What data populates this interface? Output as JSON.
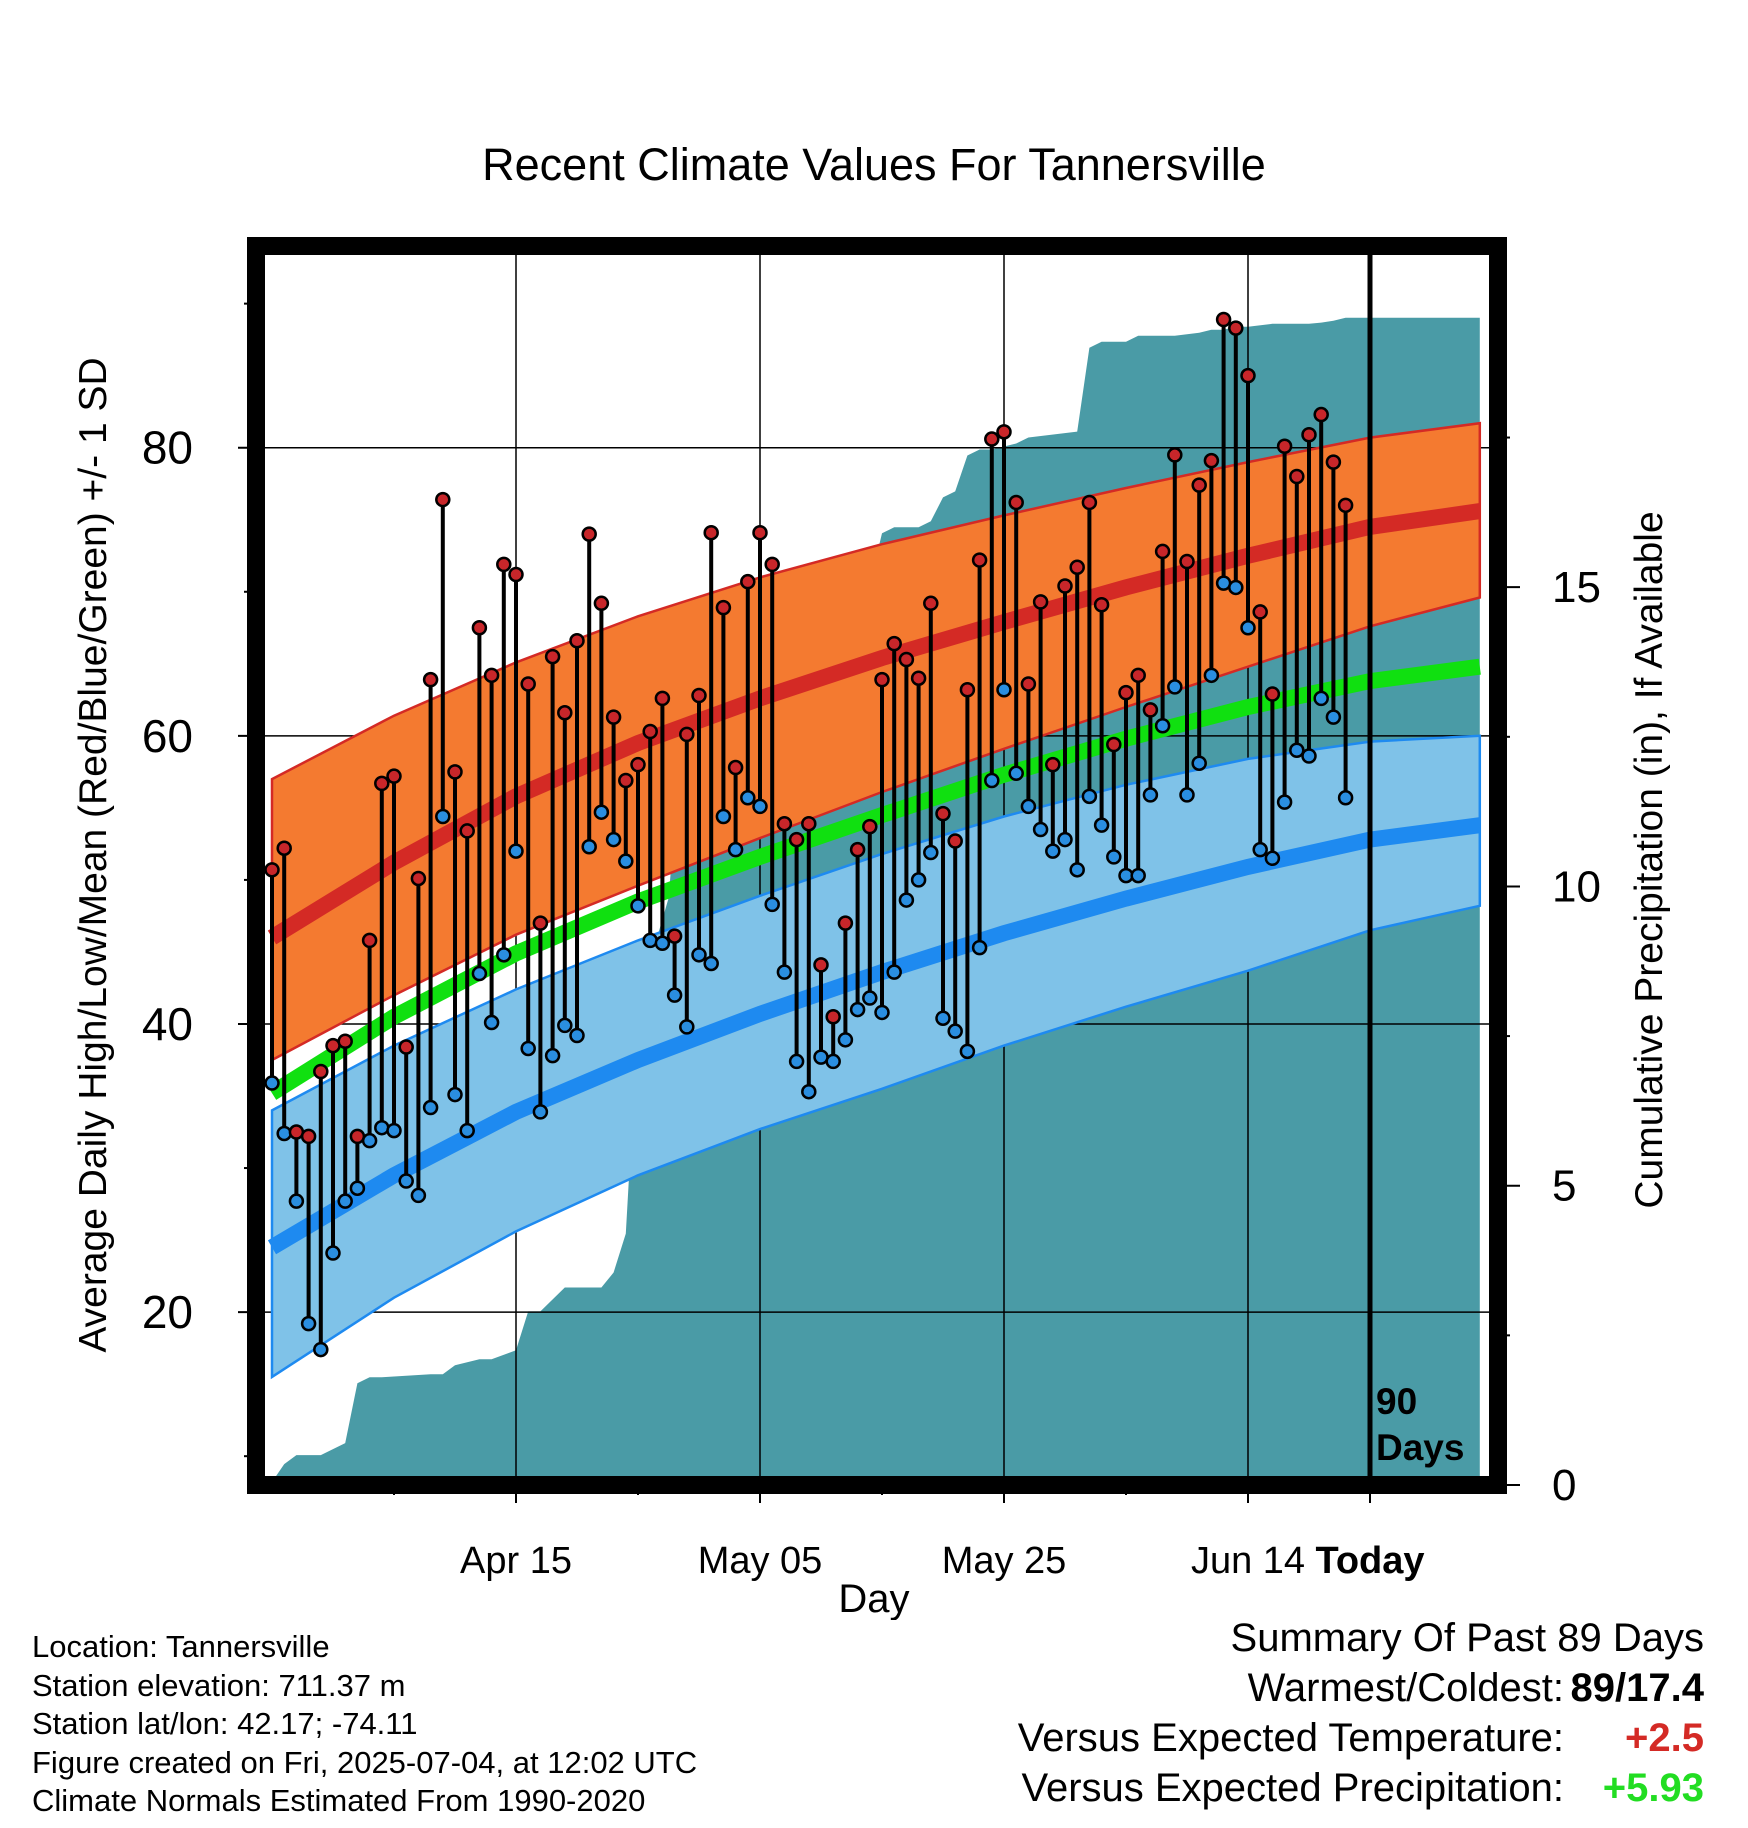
{
  "chart_data": {
    "type": "line",
    "title": "Recent Climate Values For Tannersville",
    "xlabel": "Day",
    "ylabel": "Average Daily High/Low/Mean (Red/Blue/Green) +/- 1 SD",
    "y2label": "Cumulative Precipitation (in), If Available",
    "x_tick_labels": [
      "Apr 15",
      "May 05",
      "May 25",
      "Jun 14",
      "Today"
    ],
    "y_ticks": [
      "20",
      "40",
      "60",
      "80"
    ],
    "y2_ticks": [
      "0",
      "5",
      "10",
      "15"
    ],
    "ylim": [
      8,
      94
    ],
    "y2lim": [
      0,
      20.7
    ],
    "xlim_days_before_today": [
      -90,
      9
    ],
    "grid": true,
    "today_marker_label": [
      "90",
      "Days"
    ],
    "colors": {
      "high_band": "#f47a30",
      "high_mean": "#d42a25",
      "low_band": "#7fc2e8",
      "low_mean": "#1e8af0",
      "mean": "#10e010",
      "precip": "#4a9ba6",
      "high_marker": "#c8262a",
      "low_marker": "#2a8ee0"
    },
    "normals": {
      "day_offsets": [
        -90,
        -80,
        -70,
        -60,
        -50,
        -40,
        -30,
        -20,
        -10,
        0,
        9
      ],
      "high_mean": [
        46,
        51.2,
        55.8,
        59.5,
        62.6,
        65.4,
        67.9,
        70.3,
        72.5,
        74.5,
        75.6
      ],
      "high_upper": [
        57,
        61.4,
        65.1,
        68.3,
        71.0,
        73.3,
        75.3,
        77.2,
        79.0,
        80.7,
        81.7
      ],
      "high_lower": [
        37.5,
        42,
        46.2,
        49.6,
        52.9,
        56.1,
        59.1,
        62.0,
        64.8,
        67.6,
        69.6
      ],
      "low_mean": [
        24.5,
        29.5,
        33.9,
        37.5,
        40.7,
        43.6,
        46.3,
        48.7,
        50.9,
        52.8,
        53.8
      ],
      "low_upper": [
        34,
        38.5,
        42.4,
        45.8,
        48.9,
        51.8,
        54.4,
        56.6,
        58.4,
        59.6,
        60.0
      ],
      "low_lower": [
        15.5,
        21,
        25.6,
        29.5,
        32.7,
        35.5,
        38.5,
        41.2,
        43.7,
        46.5,
        48.2
      ],
      "mean": [
        35.2,
        40.5,
        44.9,
        48.5,
        51.6,
        54.5,
        57.3,
        59.8,
        62.0,
        63.8,
        64.8
      ]
    },
    "daily_high": [
      50.7,
      52.2,
      32.5,
      32.2,
      36.7,
      38.5,
      38.8,
      32.2,
      45.8,
      56.7,
      57.2,
      38.4,
      50.1,
      63.9,
      76.4,
      57.5,
      53.4,
      67.5,
      64.2,
      71.9,
      71.2,
      63.6,
      47,
      65.5,
      61.6,
      66.6,
      74.0,
      69.2,
      61.3,
      56.9,
      58.0,
      60.3,
      62.6,
      46.1,
      60.1,
      62.8,
      74.1,
      68.9,
      57.8,
      70.7,
      74.1,
      71.9,
      53.9,
      52.8,
      53.9,
      44.1,
      40.5,
      47.0,
      52.1,
      53.7,
      63.9,
      66.4,
      65.3,
      64.0,
      69.2,
      54.6,
      52.7,
      63.2,
      72.2,
      80.6,
      81.1,
      76.2,
      63.6,
      69.3,
      58.0,
      70.4,
      71.7,
      76.2,
      69.1,
      59.4,
      63.0,
      64.2,
      61.8,
      72.8,
      79.5,
      72.1,
      77.4,
      79.1,
      88.9,
      88.3,
      85.0,
      68.6,
      62.9,
      80.1,
      78.0,
      80.9,
      82.3,
      79.0,
      76.0
    ],
    "daily_low": [
      35.9,
      32.4,
      27.7,
      19.2,
      17.4,
      24.1,
      27.7,
      28.6,
      31.9,
      32.8,
      32.6,
      29.1,
      28.1,
      34.2,
      54.4,
      35.1,
      32.6,
      43.5,
      40.1,
      44.8,
      52.0,
      38.3,
      33.9,
      37.8,
      39.9,
      39.2,
      52.3,
      54.7,
      52.8,
      51.3,
      48.2,
      45.8,
      45.6,
      42.0,
      39.8,
      44.8,
      44.2,
      54.4,
      52.1,
      55.7,
      55.1,
      48.3,
      43.6,
      37.4,
      35.3,
      37.7,
      37.4,
      38.9,
      41.0,
      41.8,
      40.8,
      43.6,
      48.6,
      50.0,
      51.9,
      40.4,
      39.5,
      38.1,
      45.3,
      56.9,
      63.2,
      57.4,
      55.1,
      53.5,
      52.0,
      52.8,
      50.7,
      55.8,
      53.8,
      51.6,
      50.3,
      50.3,
      55.9,
      60.7,
      63.4,
      55.9,
      58.1,
      64.2,
      70.6,
      70.3,
      67.5,
      52.1,
      51.5,
      55.4,
      59.0,
      58.6,
      62.6,
      61.3,
      55.7
    ],
    "cumulative_precip": {
      "day_offsets": [
        -90,
        -89,
        -88,
        -86,
        -84,
        -83,
        -82,
        -81,
        -77,
        -76,
        -75,
        -73,
        -72,
        -70,
        -69,
        -68,
        -66,
        -65,
        -63,
        -62,
        -61,
        -60.5,
        -60,
        -59.5,
        -58.5,
        -57.5,
        -56.5,
        -55.5,
        -54.5,
        -52,
        -51,
        -49,
        -48,
        -47,
        -45,
        -44,
        -43,
        -42,
        -40,
        -39,
        -37,
        -36,
        -35,
        -34,
        -33,
        -32,
        -31,
        -29,
        -28,
        -24,
        -23,
        -22,
        -21,
        -20,
        -19,
        -17,
        -16,
        -14,
        -13,
        -12,
        -11,
        -10,
        -8,
        -7,
        -5,
        -4,
        -3,
        -2,
        0,
        9
      ],
      "values": [
        0.05,
        0.35,
        0.5,
        0.5,
        0.7,
        1.7,
        1.8,
        1.8,
        1.85,
        1.85,
        2.0,
        2.1,
        2.1,
        2.25,
        2.9,
        2.9,
        3.3,
        3.3,
        3.3,
        3.55,
        4.2,
        6.0,
        7.6,
        9.0,
        9.1,
        9.8,
        12.2,
        12.2,
        12.2,
        12.5,
        12.6,
        12.7,
        13.1,
        13.9,
        14.0,
        14.2,
        14.2,
        14.2,
        15.9,
        16.0,
        16.0,
        16.1,
        16.5,
        16.6,
        17.2,
        17.3,
        17.3,
        17.4,
        17.5,
        17.6,
        19.0,
        19.1,
        19.1,
        19.1,
        19.2,
        19.2,
        19.2,
        19.25,
        19.3,
        19.3,
        19.35,
        19.35,
        19.4,
        19.4,
        19.4,
        19.42,
        19.45,
        19.5,
        19.5,
        19.5
      ]
    }
  },
  "footer": {
    "location": "Location: Tannersville",
    "elevation": "Station elevation: 711.37 m",
    "latlon": "Station lat/lon: 42.17; -74.11",
    "created": "Figure created on Fri, 2025-07-04, at 12:02 UTC",
    "normals": "Climate Normals Estimated From 1990-2020"
  },
  "summary": {
    "title": "Summary Of Past 89 Days",
    "warmest_label": "Warmest/Coldest:",
    "warmest_value": "89/17.4",
    "temp_label": "Versus Expected Temperature:",
    "temp_value": "+2.5",
    "temp_color": "#d42a25",
    "precip_label": "Versus Expected Precipitation:",
    "precip_value": "+5.93",
    "precip_color": "#22dd22"
  }
}
